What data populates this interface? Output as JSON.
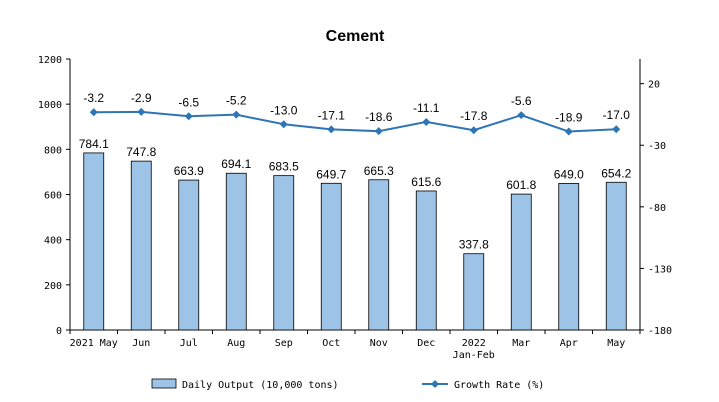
{
  "chart_data": {
    "type": "bar+line",
    "title": "Cement",
    "categories": [
      "2021 May",
      "Jun",
      "Jul",
      "Aug",
      "Sep",
      "Oct",
      "Nov",
      "Dec",
      "2022 Jan-Feb",
      "Mar",
      "Apr",
      "May"
    ],
    "category_labels": [
      [
        "2021 May"
      ],
      [
        "Jun"
      ],
      [
        "Jul"
      ],
      [
        "Aug"
      ],
      [
        "Sep"
      ],
      [
        "Oct"
      ],
      [
        "Nov"
      ],
      [
        "Dec"
      ],
      [
        "2022",
        "Jan-Feb"
      ],
      [
        "Mar"
      ],
      [
        "Apr"
      ],
      [
        "May"
      ]
    ],
    "series": [
      {
        "name": "Daily Output (10,000 tons)",
        "type": "bar",
        "axis": "left",
        "color": "#9dc3e6",
        "values": [
          784.1,
          747.8,
          663.9,
          694.1,
          683.5,
          649.7,
          665.3,
          615.6,
          337.8,
          601.8,
          649.0,
          654.2
        ],
        "labels": [
          "784.1",
          "747.8",
          "663.9",
          "694.1",
          "683.5",
          "649.7",
          "665.3",
          "615.6",
          "337.8",
          "601.8",
          "649.0",
          "654.2"
        ]
      },
      {
        "name": "Growth Rate (%)",
        "type": "line",
        "axis": "right",
        "color": "#2e75b6",
        "values": [
          -3.2,
          -2.9,
          -6.5,
          -5.2,
          -13.0,
          -17.1,
          -18.6,
          -11.1,
          -17.8,
          -5.6,
          -18.9,
          -17.0
        ],
        "labels": [
          "-3.2",
          "-2.9",
          "-6.5",
          "-5.2",
          "-13.0",
          "-17.1",
          "-18.6",
          "-11.1",
          "-17.8",
          "-5.6",
          "-18.9",
          "-17.0"
        ]
      }
    ],
    "left_axis": {
      "ylim": [
        0,
        1200
      ],
      "ticks": [
        "0",
        "200",
        "400",
        "600",
        "800",
        "1000",
        "1200"
      ]
    },
    "right_axis": {
      "ylim": [
        -180,
        40
      ],
      "ticks": [
        "-180",
        "-130",
        "-80",
        "-30",
        "20"
      ]
    },
    "grid": false,
    "legend_position": "bottom"
  }
}
